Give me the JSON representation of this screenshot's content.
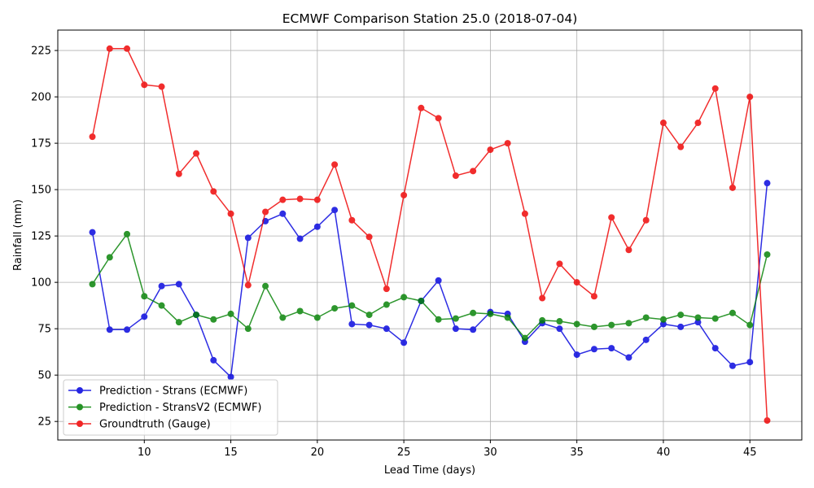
{
  "chart_data": {
    "type": "line",
    "title": "ECMWF Comparison Station 25.0 (2018-07-04)",
    "xlabel": "Lead Time (days)",
    "ylabel": "Rainfall (mm)",
    "xlim": [
      5,
      48
    ],
    "ylim": [
      15,
      236
    ],
    "xticks": [
      10,
      15,
      20,
      25,
      30,
      35,
      40,
      45
    ],
    "yticks": [
      25,
      50,
      75,
      100,
      125,
      150,
      175,
      200,
      225
    ],
    "grid": true,
    "legend_position": "lower-left",
    "x": [
      7,
      8,
      9,
      10,
      11,
      12,
      13,
      14,
      15,
      16,
      17,
      18,
      19,
      20,
      21,
      22,
      23,
      24,
      25,
      26,
      27,
      28,
      29,
      30,
      31,
      32,
      33,
      34,
      35,
      36,
      37,
      38,
      39,
      40,
      41,
      42,
      43,
      44,
      45,
      46
    ],
    "series": [
      {
        "name": "Prediction - Strans (ECMWF)",
        "color": "#0000dd",
        "values": [
          127,
          74.5,
          74.5,
          81.5,
          98,
          99,
          82.5,
          58,
          49,
          124,
          133,
          137,
          123.5,
          130,
          139,
          77.5,
          77,
          75,
          67.5,
          90,
          101,
          75,
          74.5,
          84,
          83,
          68,
          78,
          75,
          61,
          64,
          64.5,
          59.5,
          69,
          77.5,
          76,
          78.5,
          64.5,
          55,
          57,
          153.5
        ]
      },
      {
        "name": "Prediction - StransV2 (ECMWF)",
        "color": "#008000",
        "values": [
          99,
          113.5,
          126,
          92.5,
          87.5,
          78.5,
          82.5,
          80,
          83,
          75,
          98,
          81,
          84.5,
          81,
          86,
          87.5,
          82.5,
          88,
          92,
          90,
          80,
          80.5,
          83.5,
          83,
          81,
          70,
          79.5,
          79,
          77.5,
          76,
          77,
          78,
          81,
          80,
          82.5,
          81,
          80.5,
          83.5,
          77,
          115
        ]
      },
      {
        "name": "Groundtruth (Gauge)",
        "color": "#ee0000",
        "values": [
          178.5,
          226,
          226,
          206.5,
          205.5,
          158.5,
          169.5,
          149,
          137,
          98.5,
          138,
          144.5,
          145,
          144.5,
          163.5,
          133.5,
          124.5,
          96.5,
          147,
          194,
          188.5,
          157.5,
          160,
          171.5,
          175,
          137,
          91.5,
          110,
          100,
          92.5,
          135,
          117.5,
          133.5,
          186,
          173,
          186,
          204.5,
          151,
          200,
          25.5
        ]
      }
    ]
  }
}
